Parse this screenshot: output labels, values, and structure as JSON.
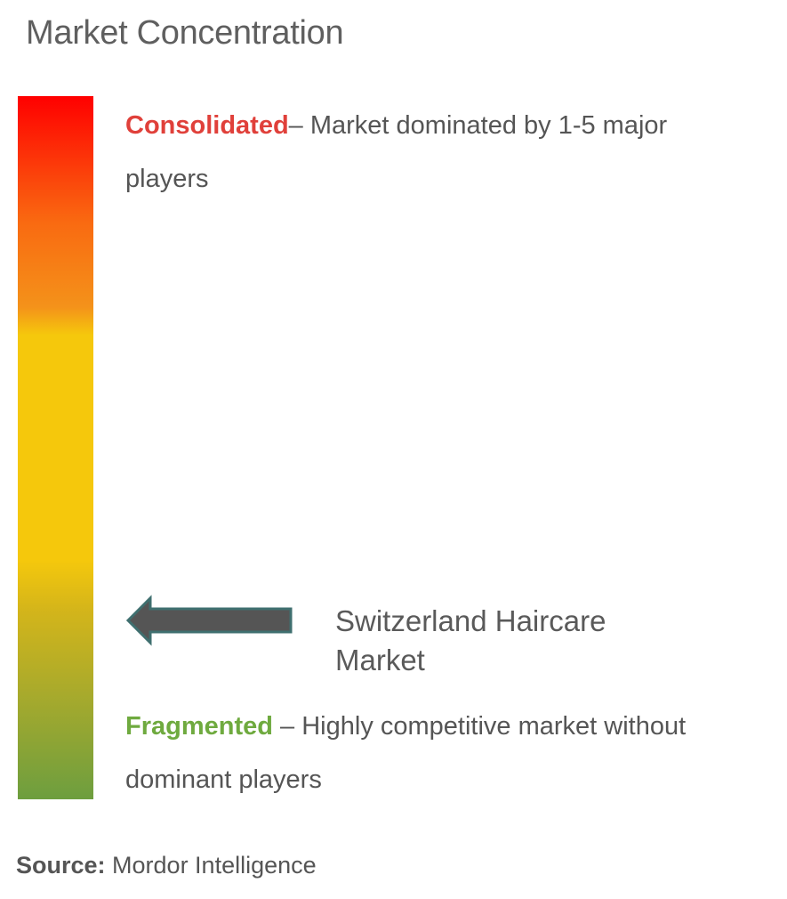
{
  "title": "Market Concentration",
  "colors": {
    "consolidated": "#e0403a",
    "fragmented": "#6faa3f",
    "arrow_fill": "#555555",
    "arrow_stroke": "#3f6f6f"
  },
  "scale": {
    "top": {
      "keyword": "Consolidated",
      "description": "– Market dominated by 1-5 major players"
    },
    "bottom": {
      "keyword": "Fragmented",
      "description": " – Highly competitive market without dominant players"
    }
  },
  "marker": {
    "icon": "left-arrow-icon",
    "label_line1": "Switzerland Haircare",
    "label_line2": "Market"
  },
  "source": {
    "label": "Source:",
    "value": " Mordor Intelligence"
  }
}
